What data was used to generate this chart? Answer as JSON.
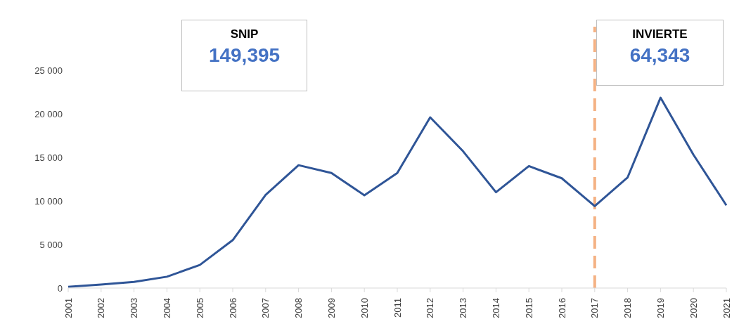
{
  "chart_data": {
    "type": "line",
    "categories": [
      "2001",
      "2002",
      "2003",
      "2004",
      "2005",
      "2006",
      "2007",
      "2008",
      "2009",
      "2010",
      "2011",
      "2012",
      "2013",
      "2014",
      "2015",
      "2016",
      "2017",
      "2018",
      "2019",
      "2020",
      "2021"
    ],
    "series": [
      {
        "color": "#2f5597",
        "values": [
          150,
          400,
          700,
          1300,
          2650,
          5500,
          10700,
          14100,
          13200,
          10650,
          13200,
          19600,
          15700,
          11000,
          14000,
          12600,
          9400,
          12700,
          21850,
          15300,
          9500
        ]
      }
    ],
    "ylim": [
      0,
      30000
    ],
    "yticks": [
      {
        "value": 0,
        "label": "0"
      },
      {
        "value": 5000,
        "label": "5 000"
      },
      {
        "value": 10000,
        "label": "10 000"
      },
      {
        "value": 15000,
        "label": "15 000"
      },
      {
        "value": 20000,
        "label": "20 000"
      },
      {
        "value": 25000,
        "label": "25 000"
      }
    ],
    "ref_lines": [
      {
        "axis": "x",
        "value": "2017",
        "color": "#f4b183",
        "line_style": "dashed"
      }
    ],
    "annotations": [
      "SNIP",
      "149,395",
      "INVIERTE",
      "64,343"
    ],
    "grid": false,
    "legend": false,
    "marker": "none",
    "line_style": "solid"
  }
}
